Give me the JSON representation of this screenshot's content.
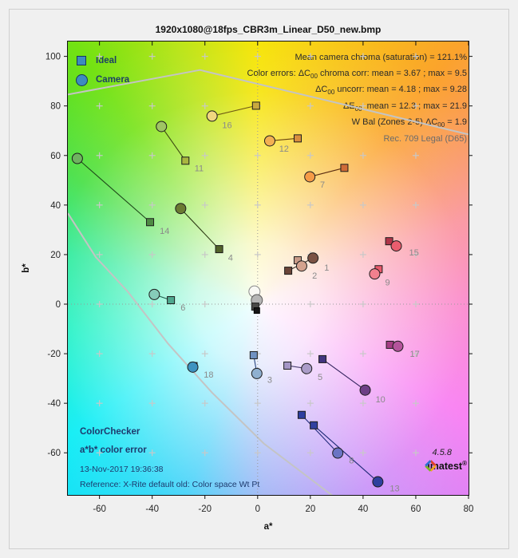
{
  "figure": {
    "title": "1920x1080@18fps_CBR3m_Linear_D50_new.bmp",
    "version": "4.5.8",
    "brand": "imatest",
    "brand_reg": "®"
  },
  "legend": {
    "ideal": "Ideal",
    "camera": "Camera"
  },
  "annotations": {
    "lines": [
      {
        "muted": false,
        "segments": [
          {
            "text": "Mean camera chroma (saturation) = 121.1%"
          }
        ]
      },
      {
        "muted": false,
        "segments": [
          {
            "text": "Color errors:  ΔC"
          },
          {
            "text": "00",
            "sub": true
          },
          {
            "text": " chroma corr:  mean = 3.67 ;  max = 9.5"
          }
        ]
      },
      {
        "muted": false,
        "segments": [
          {
            "text": "ΔC"
          },
          {
            "text": "00",
            "sub": true
          },
          {
            "text": " uncorr:  mean = 4.18 ;  max = 9.28"
          }
        ]
      },
      {
        "muted": false,
        "segments": [
          {
            "text": "ΔE"
          },
          {
            "text": "00",
            "sub": true
          },
          {
            "text": ":  mean = 12.3 ;  max = 21.9"
          }
        ]
      },
      {
        "muted": false,
        "segments": [
          {
            "text": "W Bal (Zones 2-5) ΔC"
          },
          {
            "text": "00",
            "sub": true
          },
          {
            "text": " = 1.9"
          }
        ]
      },
      {
        "muted": true,
        "segments": [
          {
            "text": "Rec. 709 Legal (D65)"
          }
        ]
      }
    ]
  },
  "footer": {
    "block_title": "ColorChecker",
    "block_subtitle": "a*b* color error",
    "datetime": "13-Nov-2017 19:36:38",
    "reference": "Reference: X-Rite default old: Color space Wt Pt"
  },
  "chart_data": {
    "type": "scatter",
    "title": "1920x1080@18fps_CBR3m_Linear_D50_new.bmp",
    "xlabel": "a*",
    "ylabel": "b*",
    "xlim": [
      -72,
      80
    ],
    "ylim": [
      -77,
      106
    ],
    "xtick_vals": [
      -60,
      -40,
      -20,
      0,
      20,
      40,
      60,
      80
    ],
    "xtick_labels": [
      "-60",
      "-40",
      "-20",
      "0",
      "20",
      "40",
      "60",
      "80"
    ],
    "ytick_vals": [
      100,
      80,
      60,
      40,
      20,
      0,
      -20,
      -40,
      -60
    ],
    "ytick_labels": [
      "100",
      "80",
      "60",
      "40",
      "20",
      "0",
      "-20",
      "-40",
      "-60"
    ],
    "grid_plus": {
      "a": [
        -60,
        -40,
        -20,
        0,
        20,
        40,
        60
      ],
      "b": [
        -60,
        -40,
        -20,
        0,
        20,
        40,
        60,
        80,
        100
      ]
    },
    "series_legend": [
      "Ideal",
      "Camera"
    ],
    "patches": [
      {
        "num": "1",
        "ideal": [
          11.6,
          13.5
        ],
        "camera": [
          21.0,
          18.6
        ],
        "label": [
          26.2,
          14.8
        ],
        "sq": "#6b4438",
        "ci": "#7b5244",
        "ln": "#3a3028"
      },
      {
        "num": "2",
        "ideal": [
          15.2,
          17.7
        ],
        "camera": [
          16.7,
          15.4
        ],
        "label": [
          21.6,
          11.6
        ],
        "sq": "#c89a88",
        "ci": "#d4a28e",
        "ln": "#3a3028"
      },
      {
        "num": "3",
        "ideal": [
          -1.5,
          -20.6
        ],
        "camera": [
          -0.3,
          -28.0
        ],
        "label": [
          4.6,
          -30.5
        ],
        "sq": "#7092c2",
        "ci": "#8fb0d0",
        "ln": "#26437e"
      },
      {
        "num": "4",
        "ideal": [
          -14.6,
          22.2
        ],
        "camera": [
          -29.2,
          38.6
        ],
        "label": [
          -10.3,
          18.9
        ],
        "sq": "#52622a",
        "ci": "#6b7a32",
        "ln": "#2c3a14"
      },
      {
        "num": "5",
        "ideal": [
          11.3,
          -24.8
        ],
        "camera": [
          18.6,
          -26.0
        ],
        "label": [
          23.7,
          -29.3
        ],
        "sq": "#a495c5",
        "ci": "#ab9cc8",
        "ln": "#4a4070"
      },
      {
        "num": "6",
        "ideal": [
          -32.9,
          1.6
        ],
        "camera": [
          -39.2,
          3.9
        ],
        "label": [
          -28.3,
          -1.3
        ],
        "sq": "#4fa88e",
        "ci": "#86ccb9",
        "ln": "#1f5c4a"
      },
      {
        "num": "7",
        "ideal": [
          32.9,
          55.0
        ],
        "camera": [
          19.8,
          51.4
        ],
        "label": [
          24.6,
          48.4
        ],
        "sq": "#cf6b38",
        "ci": "#f59b47",
        "ln": "#5a2c10"
      },
      {
        "num": "8",
        "ideal": [
          16.7,
          -44.7
        ],
        "camera": [
          30.4,
          -60.1
        ],
        "label": [
          35.6,
          -63.0
        ],
        "sq": "#2e3f9f",
        "ci": "#6b74c4",
        "ln": "#252f7e"
      },
      {
        "num": "9",
        "ideal": [
          45.9,
          14.1
        ],
        "camera": [
          44.4,
          12.2
        ],
        "label": [
          49.3,
          8.9
        ],
        "sq": "#e8596a",
        "ci": "#f2808e",
        "ln": "#8c2030"
      },
      {
        "num": "10",
        "ideal": [
          24.6,
          -22.2
        ],
        "camera": [
          40.8,
          -34.7
        ],
        "label": [
          46.6,
          -38.3
        ],
        "sq": "#42357f",
        "ci": "#6d3f86",
        "ln": "#33235e"
      },
      {
        "num": "11",
        "ideal": [
          -27.4,
          57.9
        ],
        "camera": [
          -36.5,
          71.7
        ],
        "label": [
          -22.2,
          55.0
        ],
        "sq": "#a9b640",
        "ci": "#9fc464",
        "ln": "#3d4a12"
      },
      {
        "num": "12",
        "ideal": [
          15.2,
          66.9
        ],
        "camera": [
          4.6,
          65.9
        ],
        "label": [
          10.0,
          62.8
        ],
        "sq": "#d98e3f",
        "ci": "#f3b052",
        "ln": "#6b4310"
      },
      {
        "num": "13",
        "ideal": [
          21.3,
          -48.9
        ],
        "camera": [
          45.6,
          -71.7
        ],
        "label": [
          52.0,
          -74.3
        ],
        "sq": "#31409f",
        "ci": "#2f3f9e",
        "ln": "#1f2a78"
      },
      {
        "num": "14",
        "ideal": [
          -40.8,
          33.1
        ],
        "camera": [
          -68.4,
          58.8
        ],
        "label": [
          -35.3,
          29.6
        ],
        "sq": "#4f8a44",
        "ci": "#6fb360",
        "ln": "#1f4a1a"
      },
      {
        "num": "15",
        "ideal": [
          49.9,
          25.4
        ],
        "camera": [
          52.6,
          23.5
        ],
        "label": [
          59.3,
          21.0
        ],
        "sq": "#b03448",
        "ci": "#ea5d6e",
        "ln": "#801f2e"
      },
      {
        "num": "16",
        "ideal": [
          -0.6,
          80.1
        ],
        "camera": [
          -17.3,
          75.9
        ],
        "label": [
          -11.6,
          72.4
        ],
        "sq": "#c9a93e",
        "ci": "#f0d67e",
        "ln": "#6e5a14"
      },
      {
        "num": "17",
        "ideal": [
          50.2,
          -16.4
        ],
        "camera": [
          53.2,
          -17.0
        ],
        "label": [
          59.6,
          -20.0
        ],
        "sq": "#a63d85",
        "ci": "#b4549b",
        "ln": "#6e2054"
      },
      {
        "num": "18",
        "ideal": [
          -24.3,
          -25.0
        ],
        "camera": [
          -24.6,
          -25.4
        ],
        "label": [
          -18.6,
          -28.4
        ],
        "sq": "#3f93c0",
        "ci": "#3f93c0",
        "ln": "#1f4a66"
      }
    ],
    "wb_markers": [
      {
        "shape": "circle",
        "pos": [
          -1.2,
          5.1
        ],
        "fill": "#f8f8f4",
        "edge": "#8a8a8a",
        "size": 14
      },
      {
        "shape": "circle",
        "pos": [
          -0.3,
          1.6
        ],
        "fill": "#b5b5b5",
        "edge": "#5a5a5a",
        "size": 14
      },
      {
        "shape": "square",
        "pos": [
          -0.9,
          -1.0
        ],
        "fill": "#4a4a48",
        "edge": "#1c1c1c",
        "size": 9
      },
      {
        "shape": "square",
        "pos": [
          -0.3,
          -2.6
        ],
        "fill": "#161616",
        "edge": "#000000",
        "size": 7
      }
    ],
    "gamut_lines": [
      {
        "points": [
          [
            -72,
            84.6
          ],
          [
            -21.9,
            94.5
          ],
          [
            80,
            68.5
          ]
        ]
      },
      {
        "points": [
          [
            -72,
            36.7
          ],
          [
            -61.4,
            19.0
          ],
          [
            -49.3,
            5.1
          ],
          [
            -34.1,
            -15.8
          ],
          [
            -17.3,
            -35.7
          ],
          [
            2.4,
            -56.3
          ],
          [
            28.3,
            -77.2
          ]
        ]
      }
    ],
    "colors": {
      "boundary": "#c4c4c4",
      "zero_line": "#9a9a9a",
      "grid_plus": "#c8c8c8",
      "marker_edge": "#1c1c1c",
      "label_gray": "#8a8a8a",
      "tick_text": "#262626",
      "axis_line": "#111111"
    },
    "logo_colors": [
      "#e04028",
      "#f5a51f",
      "#7ab520",
      "#2f6fd0"
    ]
  }
}
